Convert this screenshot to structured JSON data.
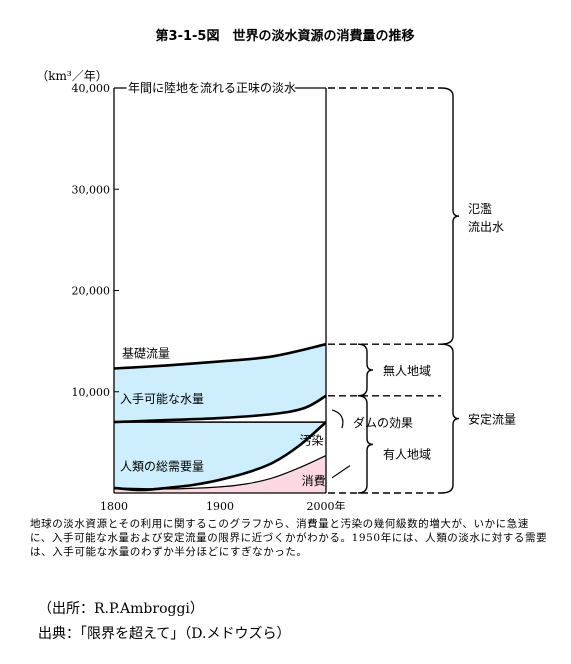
{
  "chart_data": {
    "type": "area",
    "title": "第3-1-5図　世界の淡水資源の消費量の推移",
    "ylabel": "（km³／年）",
    "x_unit": "年",
    "xlim": [
      1800,
      2000
    ],
    "ylim": [
      0,
      40000
    ],
    "x_ticks": [
      "1800",
      "1900",
      "2000"
    ],
    "y_ticks": [
      "10,000",
      "20,000",
      "30,000",
      "40,000"
    ],
    "series": [
      {
        "name": "年間に陸地を流れる正味の淡水",
        "x": [
          1800,
          2000
        ],
        "values": [
          40000,
          40000
        ]
      },
      {
        "name": "基礎流量",
        "x": [
          1800,
          1850,
          1900,
          1950,
          2000
        ],
        "values": [
          12300,
          12600,
          13000,
          13500,
          14700
        ]
      },
      {
        "name": "入手可能な水量",
        "x": [
          1800,
          1850,
          1900,
          1950,
          1980,
          2000
        ],
        "values": [
          7000,
          7200,
          7400,
          7800,
          8400,
          9600
        ]
      },
      {
        "name": "人類の総需要量",
        "x": [
          1800,
          1825,
          1850,
          1875,
          1900,
          1925,
          1950,
          1975,
          2000
        ],
        "values": [
          500,
          300,
          500,
          800,
          1300,
          2000,
          3000,
          4700,
          7000
        ]
      },
      {
        "name": "消費",
        "x": [
          1800,
          1850,
          1900,
          1925,
          1950,
          1975,
          2000
        ],
        "values": [
          500,
          400,
          600,
          900,
          1500,
          2500,
          3700
        ]
      }
    ],
    "reference_line": {
      "value": 7000
    },
    "annotations": [
      "汚染",
      "ダムの効果",
      "無人地域",
      "有人地域",
      "安定流量",
      "氾濫流出水"
    ]
  },
  "caption": "地球の淡水資源とその利用に関するこのグラフから、消費量と汚染の幾何級数的増大が、いかに急速に、入手可能な水量および安定流量の限界に近づくかがわかる。1950年には、人類の淡水に対する需要は、入手可能な水量のわずか半分ほどにすぎなかった。",
  "source_line": "（出所：R.P.Ambroggi）",
  "citation_line": "出典：「限界を超えて」（D.メドウズら）",
  "colors": {
    "water": "#cdeefc",
    "consumption": "#fcd8e2",
    "line": "#000000"
  }
}
